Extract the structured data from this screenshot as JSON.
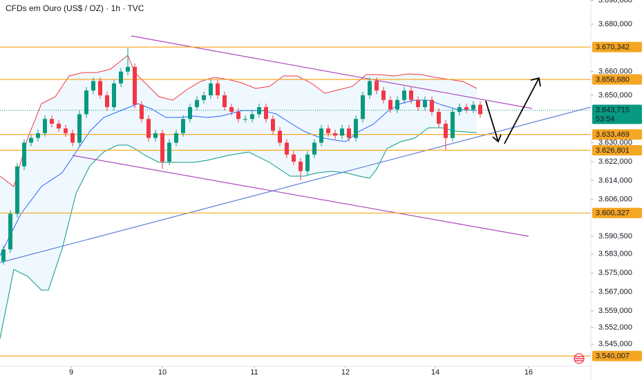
{
  "chart_data": {
    "type": "candlestick",
    "title": "CFDs em Ouro (US$ / OZ) · 1h · TVC",
    "candles": {
      "open": [
        3580,
        3585,
        3600,
        3620,
        3630,
        3632,
        3634,
        3640,
        3638,
        3636,
        3634,
        3630,
        3642,
        3652,
        3656,
        3650,
        3645,
        3655,
        3660,
        3662,
        3646,
        3640,
        3632,
        3634,
        3622,
        3630,
        3634,
        3640,
        3645,
        3648,
        3650,
        3655,
        3650,
        3645,
        3643,
        3640,
        3640,
        3642,
        3645,
        3640,
        3635,
        3630,
        3625,
        3622,
        3618,
        3625,
        3630,
        3636,
        3634,
        3633,
        3636,
        3632,
        3640,
        3650,
        3656,
        3652,
        3648,
        3644,
        3648,
        3652,
        3648,
        3645,
        3648,
        3643,
        3638,
        3632,
        3643,
        3645,
        3644,
        3646
      ],
      "high": [
        3586.5,
        3601.5,
        3621.5,
        3631.5,
        3633.5,
        3635.5,
        3641.5,
        3641.5,
        3639.5,
        3637.5,
        3635.5,
        3643.5,
        3653.5,
        3657.5,
        3657.5,
        3651.5,
        3656.5,
        3661.5,
        3670,
        3663.5,
        3647.5,
        3641.5,
        3635.5,
        3635.5,
        3631.5,
        3635.5,
        3641.5,
        3646.5,
        3649.5,
        3651.5,
        3656.5,
        3656.5,
        3651.5,
        3646.5,
        3644.5,
        3641.5,
        3643.5,
        3646.5,
        3646.5,
        3641.5,
        3636.5,
        3631.5,
        3626.5,
        3623.5,
        3626.5,
        3631.5,
        3637.5,
        3637.5,
        3635.5,
        3637.5,
        3637.5,
        3641.5,
        3651.5,
        3657.5,
        3657.5,
        3653.5,
        3649.5,
        3649.5,
        3653.5,
        3653.5,
        3649.5,
        3649.5,
        3649.5,
        3644.5,
        3639.5,
        3644.5,
        3646.5,
        3646.5,
        3647.5,
        3647.5
      ],
      "low": [
        3578.5,
        3583.5,
        3598.5,
        3618.5,
        3628.5,
        3630.5,
        3632.5,
        3636.5,
        3634.5,
        3632.5,
        3628.5,
        3628.5,
        3640.5,
        3650.5,
        3648.5,
        3643.5,
        3643.5,
        3653.5,
        3658.5,
        3644.5,
        3638.5,
        3630.5,
        3630.5,
        3619,
        3620.5,
        3628.5,
        3632.5,
        3638.5,
        3643.5,
        3646.5,
        3648.5,
        3648.5,
        3643.5,
        3641.5,
        3638.5,
        3638.5,
        3638.5,
        3640.5,
        3638.5,
        3633.5,
        3628.5,
        3623.5,
        3620.5,
        3614,
        3616.5,
        3623.5,
        3628.5,
        3632.5,
        3631.5,
        3631.5,
        3630.5,
        3630.5,
        3638.5,
        3648.5,
        3650.5,
        3646.5,
        3642.5,
        3642.5,
        3646.5,
        3646.5,
        3643.5,
        3643.5,
        3641.5,
        3636.5,
        3627,
        3630.5,
        3641.5,
        3642.5,
        3642.5,
        3640.5
      ],
      "close": [
        3585,
        3600,
        3620,
        3630,
        3632,
        3634,
        3640,
        3638,
        3636,
        3634,
        3630,
        3642,
        3652,
        3656,
        3650,
        3645,
        3655,
        3660,
        3662,
        3646,
        3640,
        3632,
        3634,
        3622,
        3630,
        3634,
        3640,
        3645,
        3648,
        3650,
        3655,
        3650,
        3645,
        3643,
        3640,
        3640,
        3642,
        3645,
        3640,
        3635,
        3630,
        3625,
        3622,
        3618,
        3625,
        3630,
        3636,
        3634,
        3633,
        3636,
        3632,
        3640,
        3650,
        3656,
        3652,
        3648,
        3644,
        3648,
        3652,
        3648,
        3645,
        3648,
        3643,
        3638,
        3632,
        3643,
        3645,
        3644,
        3646,
        3642
      ],
      "up_color": "#089981",
      "down_color": "#f23645"
    },
    "xlim": [
      0,
      85.5
    ],
    "xticks": [
      {
        "value": 10.3,
        "label": "9"
      },
      {
        "value": 23.5,
        "label": "10"
      },
      {
        "value": 36.8,
        "label": "11"
      },
      {
        "value": 50,
        "label": "12"
      },
      {
        "value": 63,
        "label": "14"
      },
      {
        "value": 76.5,
        "label": "16"
      }
    ],
    "ylim": [
      3535.7,
      3690.2
    ],
    "yticks": [
      {
        "value": 3690,
        "label": "3.690,000"
      },
      {
        "value": 3680,
        "label": "3.680,000"
      },
      {
        "value": 3660,
        "label": "3.660,000"
      },
      {
        "value": 3650,
        "label": "3.650,000"
      },
      {
        "value": 3630,
        "label": "3.630,000"
      },
      {
        "value": 3622,
        "label": "3.622,000"
      },
      {
        "value": 3614,
        "label": "3.614,000"
      },
      {
        "value": 3606,
        "label": "3.606,000"
      },
      {
        "value": 3590.5,
        "label": "3.590,500"
      },
      {
        "value": 3583,
        "label": "3.583,000"
      },
      {
        "value": 3575,
        "label": "3.575,000"
      },
      {
        "value": 3567,
        "label": "3.567,000"
      },
      {
        "value": 3559,
        "label": "3.559,000"
      },
      {
        "value": 3552,
        "label": "3.552,000"
      },
      {
        "value": 3545,
        "label": "3.545,000"
      }
    ],
    "levels": {
      "color": "#f5a623",
      "items": [
        {
          "value": 3670.342,
          "label": "3.670,342"
        },
        {
          "value": 3656.68,
          "label": "3.656,680"
        },
        {
          "value": 3633.469,
          "label": "3.633,469"
        },
        {
          "value": 3626.801,
          "label": "3.626,801"
        },
        {
          "value": 3600.327,
          "label": "3.600,327"
        },
        {
          "value": 3540.007,
          "label": "3.540,007"
        }
      ]
    },
    "last_price": {
      "value": 3643.715,
      "label": "3.643,715",
      "countdown": "53:54",
      "color": "#089981"
    }
  }
}
